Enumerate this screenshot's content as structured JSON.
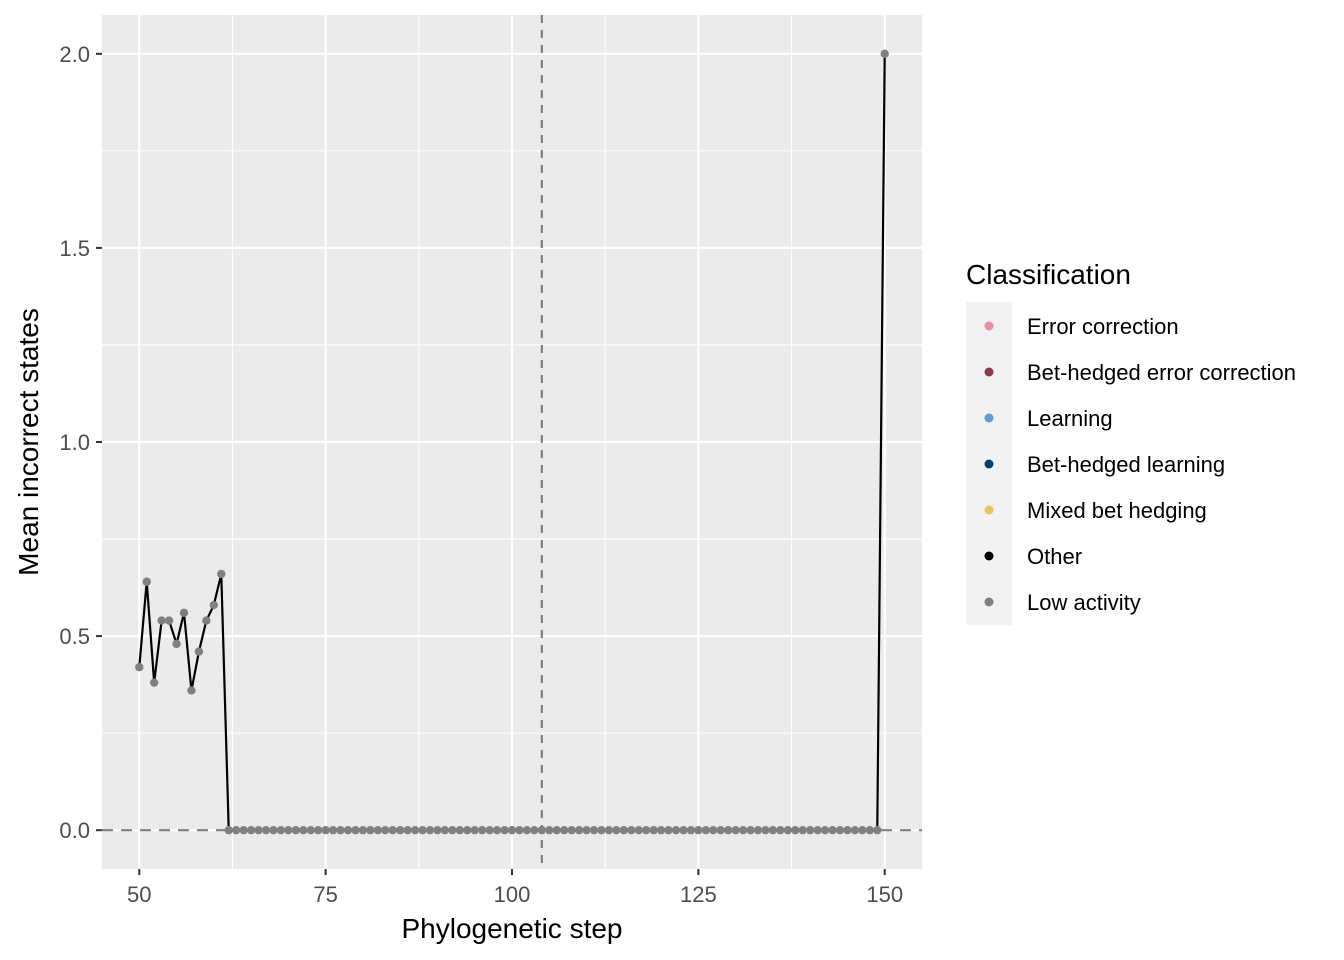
{
  "chart_data": {
    "type": "line",
    "title": "",
    "xlabel": "Phylogenetic step",
    "ylabel": "Mean incorrect states",
    "xlim": [
      45,
      155
    ],
    "ylim": [
      -0.1,
      2.1
    ],
    "x_ticks": [
      50,
      75,
      100,
      125,
      150
    ],
    "x_tick_labels": [
      "50",
      "75",
      "100",
      "125",
      "150"
    ],
    "y_ticks": [
      0,
      0.5,
      1,
      1.5,
      2
    ],
    "y_tick_labels": [
      "0.0",
      "0.5",
      "1.0",
      "1.5",
      "2.0"
    ],
    "grid": true,
    "vline_x": 104,
    "hline_y": 0,
    "line_color": "#000000",
    "series": [
      {
        "classification": "Low activity",
        "color": "#808080",
        "x": [
          50,
          51,
          52,
          53,
          54,
          55,
          56,
          57,
          58,
          59,
          60,
          61,
          62,
          63,
          64,
          65,
          66,
          67,
          68,
          69,
          70,
          71,
          72,
          73,
          74,
          75,
          76,
          77,
          78,
          79,
          80,
          81,
          82,
          83,
          84,
          85,
          86,
          87,
          88,
          89,
          90,
          91,
          92,
          93,
          94,
          95,
          96,
          97,
          98,
          99,
          100,
          101,
          102,
          103,
          104,
          105,
          106,
          107,
          108,
          109,
          110,
          111,
          112,
          113,
          114,
          115,
          116,
          117,
          118,
          119,
          120,
          121,
          122,
          123,
          124,
          125,
          126,
          127,
          128,
          129,
          130,
          131,
          132,
          133,
          134,
          135,
          136,
          137,
          138,
          139,
          140,
          141,
          142,
          143,
          144,
          145,
          146,
          147,
          148,
          149,
          150
        ],
        "y": [
          0.42,
          0.64,
          0.38,
          0.54,
          0.54,
          0.48,
          0.56,
          0.36,
          0.46,
          0.54,
          0.58,
          0.66,
          0,
          0,
          0,
          0,
          0,
          0,
          0,
          0,
          0,
          0,
          0,
          0,
          0,
          0,
          0,
          0,
          0,
          0,
          0,
          0,
          0,
          0,
          0,
          0,
          0,
          0,
          0,
          0,
          0,
          0,
          0,
          0,
          0,
          0,
          0,
          0,
          0,
          0,
          0,
          0,
          0,
          0,
          0,
          0,
          0,
          0,
          0,
          0,
          0,
          0,
          0,
          0,
          0,
          0,
          0,
          0,
          0,
          0,
          0,
          0,
          0,
          0,
          0,
          0,
          0,
          0,
          0,
          0,
          0,
          0,
          0,
          0,
          0,
          0,
          0,
          0,
          0,
          0,
          0,
          0,
          0,
          0,
          0,
          0,
          0,
          0,
          0,
          0,
          2.0
        ]
      }
    ],
    "legend": {
      "title": "Classification",
      "placement": "right",
      "items": [
        {
          "label": "Error correction",
          "color": "#e8909c"
        },
        {
          "label": "Bet-hedged error correction",
          "color": "#8c3a4a"
        },
        {
          "label": "Learning",
          "color": "#6699cc"
        },
        {
          "label": "Bet-hedged learning",
          "color": "#0a3a73"
        },
        {
          "label": "Mixed bet hedging",
          "color": "#e6c35c"
        },
        {
          "label": "Other",
          "color": "#000000"
        },
        {
          "label": "Low activity",
          "color": "#808080"
        }
      ]
    }
  }
}
